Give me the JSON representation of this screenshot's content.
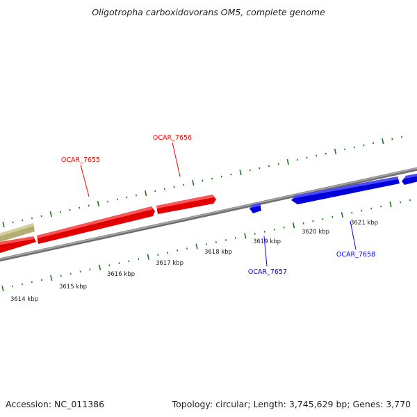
{
  "title": "Oligotropha carboxidovorans OM5, complete genome",
  "footer": {
    "accession": "Accession: NC_011386",
    "summary": "Topology: circular; Length: 3,745,629 bp; Genes: 3,770"
  },
  "colors": {
    "forward_strand": "#ff0000",
    "reverse_strand": "#0000ff",
    "other_feature": "#b5ae72",
    "backbone": "#8c8c8c",
    "ticks": "#1a7a1a"
  },
  "ruler": {
    "unit": "kbp",
    "tick_labels": [
      "3614 kbp",
      "3615 kbp",
      "3616 kbp",
      "3617 kbp",
      "3618 kbp",
      "3619 kbp",
      "3620 kbp",
      "3621 kbp"
    ]
  },
  "genes": [
    {
      "id": "OCAR_7655",
      "strand": "forward",
      "color": "#ff0000"
    },
    {
      "id": "OCAR_7656",
      "strand": "forward",
      "color": "#ff0000"
    },
    {
      "id": "OCAR_7657",
      "strand": "reverse",
      "color": "#0000ff"
    },
    {
      "id": "OCAR_7658",
      "strand": "reverse",
      "color": "#0000ff"
    }
  ]
}
